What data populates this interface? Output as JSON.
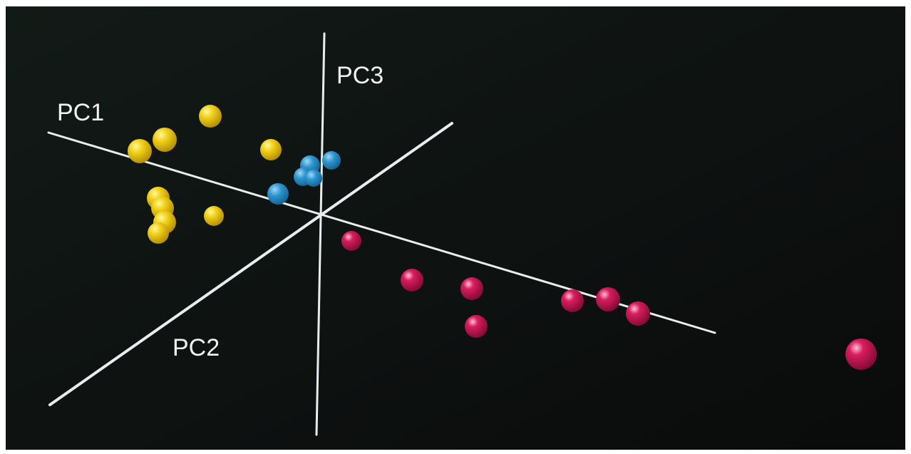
{
  "axes": {
    "pc1": "PC1",
    "pc2": "PC2",
    "pc3": "PC3"
  }
}
